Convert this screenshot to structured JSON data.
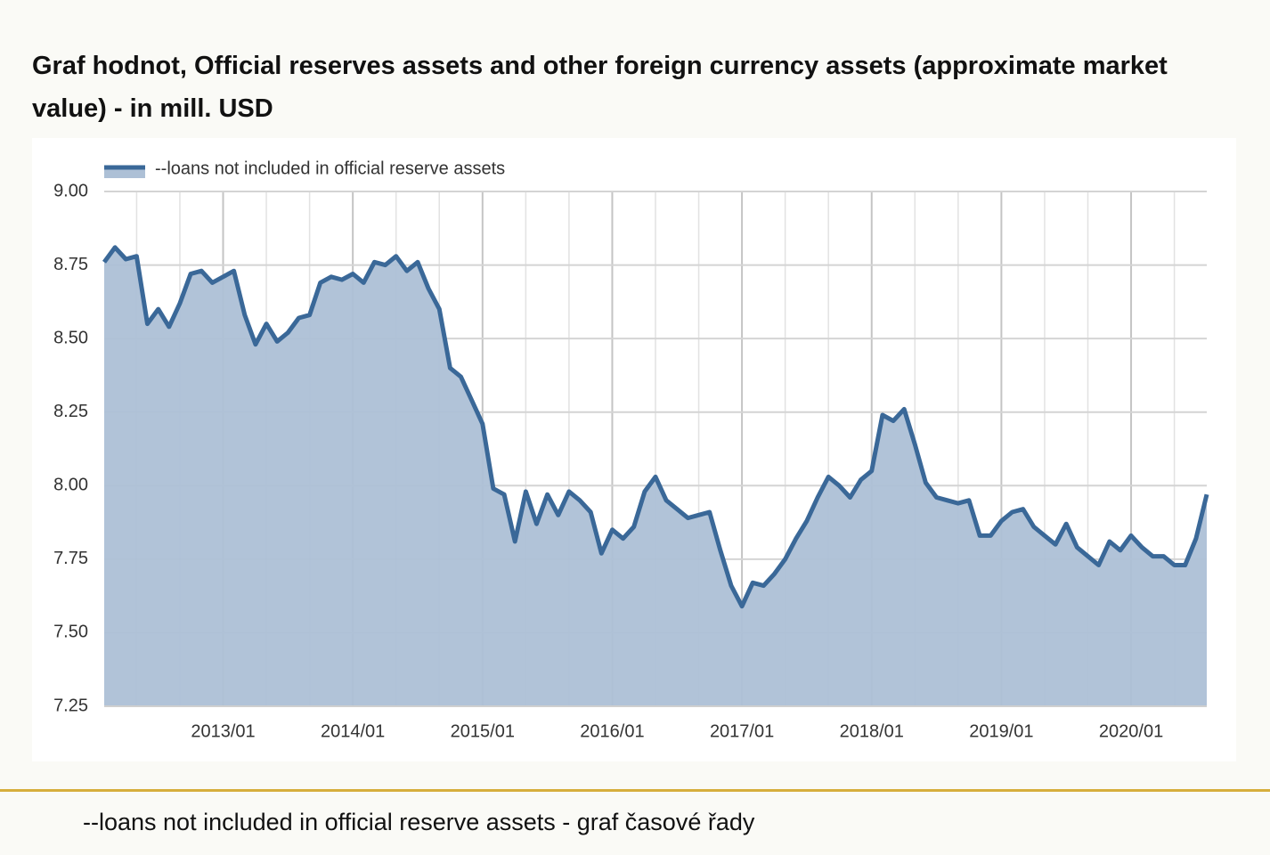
{
  "header": {
    "title": "Graf hodnot, Official reserves assets and other foreign currency assets (approximate market value) - in mill. USD"
  },
  "chart_data": {
    "type": "area",
    "x": [
      "2012/02",
      "2012/03",
      "2012/04",
      "2012/05",
      "2012/06",
      "2012/07",
      "2012/08",
      "2012/09",
      "2012/10",
      "2012/11",
      "2012/12",
      "2013/01",
      "2013/02",
      "2013/03",
      "2013/04",
      "2013/05",
      "2013/06",
      "2013/07",
      "2013/08",
      "2013/09",
      "2013/10",
      "2013/11",
      "2013/12",
      "2014/01",
      "2014/02",
      "2014/03",
      "2014/04",
      "2014/05",
      "2014/06",
      "2014/07",
      "2014/08",
      "2014/09",
      "2014/10",
      "2014/11",
      "2014/12",
      "2015/01",
      "2015/02",
      "2015/03",
      "2015/04",
      "2015/05",
      "2015/06",
      "2015/07",
      "2015/08",
      "2015/09",
      "2015/10",
      "2015/11",
      "2015/12",
      "2016/01",
      "2016/02",
      "2016/03",
      "2016/04",
      "2016/05",
      "2016/06",
      "2016/07",
      "2016/08",
      "2016/09",
      "2016/10",
      "2016/11",
      "2016/12",
      "2017/01",
      "2017/02",
      "2017/03",
      "2017/04",
      "2017/05",
      "2017/06",
      "2017/07",
      "2017/08",
      "2017/09",
      "2017/10",
      "2017/11",
      "2017/12",
      "2018/01",
      "2018/02",
      "2018/03",
      "2018/04",
      "2018/05",
      "2018/06",
      "2018/07",
      "2018/08",
      "2018/09",
      "2018/10",
      "2018/11",
      "2018/12",
      "2019/01",
      "2019/02",
      "2019/03",
      "2019/04",
      "2019/05",
      "2019/06",
      "2019/07",
      "2019/08",
      "2019/09",
      "2019/10",
      "2019/11",
      "2019/12",
      "2020/01",
      "2020/02",
      "2020/03",
      "2020/04",
      "2020/05",
      "2020/06",
      "2020/07",
      "2020/08"
    ],
    "series": [
      {
        "name": "--loans not included in official reserve assets",
        "color": "#3a6898",
        "fill": "#adc0d6",
        "values": [
          8.76,
          8.81,
          8.77,
          8.78,
          8.55,
          8.6,
          8.54,
          8.62,
          8.72,
          8.73,
          8.69,
          8.71,
          8.73,
          8.58,
          8.48,
          8.55,
          8.49,
          8.52,
          8.57,
          8.58,
          8.69,
          8.71,
          8.7,
          8.72,
          8.69,
          8.76,
          8.75,
          8.78,
          8.73,
          8.76,
          8.67,
          8.6,
          8.4,
          8.37,
          8.29,
          8.21,
          7.99,
          7.97,
          7.81,
          7.98,
          7.87,
          7.97,
          7.9,
          7.98,
          7.95,
          7.91,
          7.77,
          7.85,
          7.82,
          7.86,
          7.98,
          8.03,
          7.95,
          7.92,
          7.89,
          7.9,
          7.91,
          7.78,
          7.66,
          7.59,
          7.67,
          7.66,
          7.7,
          7.75,
          7.82,
          7.88,
          7.96,
          8.03,
          8.0,
          7.96,
          8.02,
          8.05,
          8.24,
          8.22,
          8.26,
          8.14,
          8.01,
          7.96,
          7.95,
          7.94,
          7.95,
          7.83,
          7.83,
          7.88,
          7.91,
          7.92,
          7.86,
          7.83,
          7.8,
          7.87,
          7.79,
          7.76,
          7.73,
          7.81,
          7.78,
          7.83,
          7.79,
          7.76,
          7.76,
          7.73,
          7.73,
          7.82,
          7.97
        ]
      }
    ],
    "ylim": [
      7.25,
      9.0
    ],
    "yticks": [
      {
        "value": 7.25,
        "label": "7.25"
      },
      {
        "value": 7.5,
        "label": "7.50"
      },
      {
        "value": 7.75,
        "label": "7.75"
      },
      {
        "value": 8,
        "label": "8.00"
      },
      {
        "value": 8.25,
        "label": "8.25"
      },
      {
        "value": 8.5,
        "label": "8.50"
      },
      {
        "value": 8.75,
        "label": "8.75"
      },
      {
        "value": 9,
        "label": "9.00"
      }
    ],
    "xticks": [
      "2013/01",
      "2014/01",
      "2015/01",
      "2016/01",
      "2017/01",
      "2018/01",
      "2019/01",
      "2020/01"
    ],
    "grid": true,
    "legend": "top-left"
  },
  "footer": {
    "caption": "--loans not included in official reserve assets - graf časové řady"
  }
}
